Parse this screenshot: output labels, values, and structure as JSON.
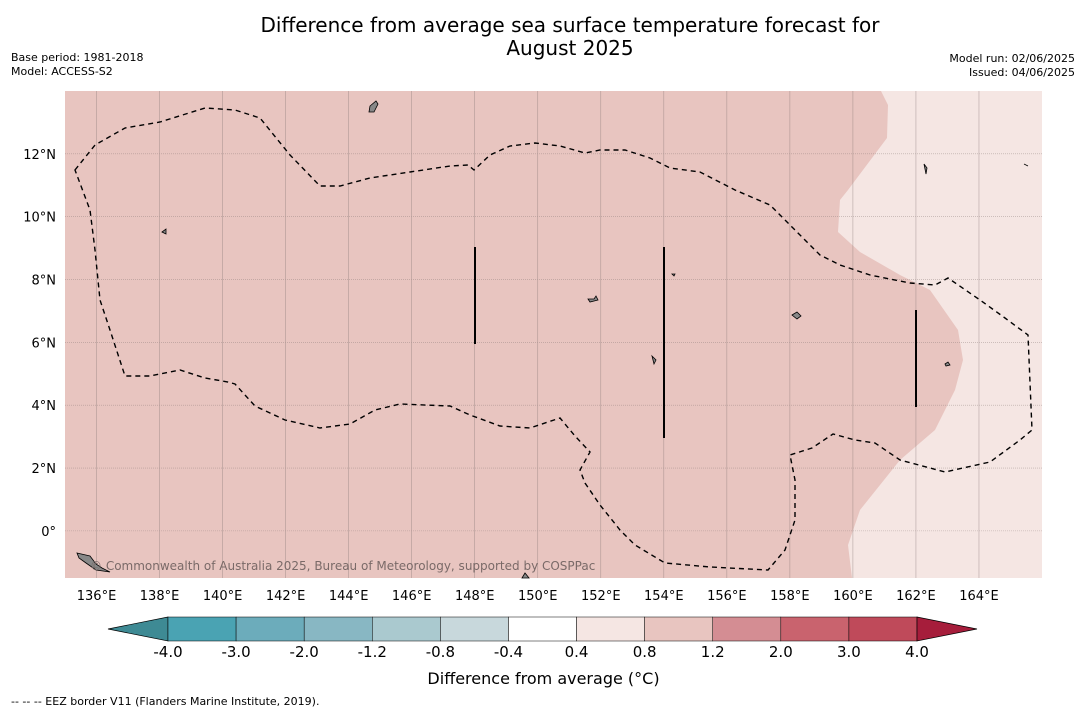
{
  "title_line1": "Difference from average sea surface temperature forecast for",
  "title_line2": "August 2025",
  "base_period": "Base period: 1981-2018",
  "model": "Model: ACCESS-S2",
  "model_run": "Model run: 02/06/2025",
  "issued": "Issued: 04/06/2025",
  "copyright": "© Commonwealth of Australia 2025, Bureau of Meteorology, supported by COSPPac",
  "map": {
    "lon_range": [
      135,
      166
    ],
    "lat_range": [
      -1.5,
      14
    ],
    "lon_ticks": [
      "136°E",
      "138°E",
      "140°E",
      "142°E",
      "144°E",
      "146°E",
      "148°E",
      "150°E",
      "152°E",
      "154°E",
      "156°E",
      "158°E",
      "160°E",
      "162°E",
      "164°E"
    ],
    "lon_tick_values": [
      136,
      138,
      140,
      142,
      144,
      146,
      148,
      150,
      152,
      154,
      156,
      158,
      160,
      162,
      164
    ],
    "lat_ticks": [
      "12°N",
      "10°N",
      "8°N",
      "6°N",
      "4°N",
      "2°N",
      "0°"
    ],
    "lat_tick_values": [
      12,
      10,
      8,
      6,
      4,
      2,
      0
    ],
    "anomaly_main_color": "#e8c5c0",
    "anomaly_east_color": "#f5e6e3"
  },
  "colorbar": {
    "title": "Difference from average (°C)",
    "tick_labels": [
      "-4.0",
      "-3.0",
      "-2.0",
      "-1.2",
      "-0.8",
      "-0.4",
      "0.4",
      "0.8",
      "1.2",
      "2.0",
      "3.0",
      "4.0"
    ],
    "colors": [
      "#3e8a94",
      "#4aa3b3",
      "#6cacbb",
      "#88b7c3",
      "#aac9cf",
      "#c8d8dc",
      "#ffffff",
      "#f5e6e3",
      "#e8c5c0",
      "#d48d93",
      "#c9636e",
      "#bf4a5a",
      "#a61d3b"
    ]
  },
  "footnote": "--  --  -- EEZ border V11 (Flanders Marine Institute, 2019)."
}
